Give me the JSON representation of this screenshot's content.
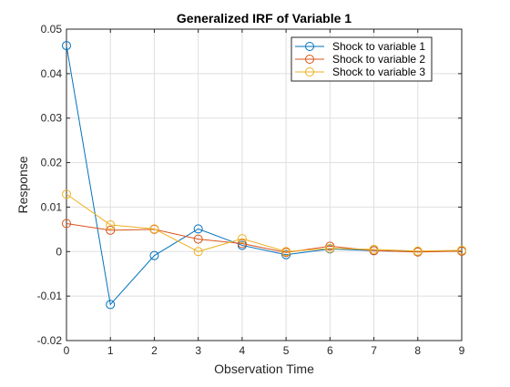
{
  "chart_data": {
    "type": "line",
    "title": "Generalized IRF of Variable 1",
    "xlabel": "Observation Time",
    "ylabel": "Response",
    "xlim": [
      0,
      9
    ],
    "ylim": [
      -0.02,
      0.05
    ],
    "grid": true,
    "legend_position": "top-right",
    "x": [
      0,
      1,
      2,
      3,
      4,
      5,
      6,
      7,
      8,
      9
    ],
    "x_ticks": [
      0,
      1,
      2,
      3,
      4,
      5,
      6,
      7,
      8,
      9
    ],
    "x_tick_labels": [
      "0",
      "1",
      "2",
      "3",
      "4",
      "5",
      "6",
      "7",
      "8",
      "9"
    ],
    "y_ticks": [
      -0.02,
      -0.01,
      0,
      0.01,
      0.02,
      0.03,
      0.04,
      0.05
    ],
    "y_tick_labels": [
      "-0.02",
      "-0.01",
      "0",
      "0.01",
      "0.02",
      "0.03",
      "0.04",
      "0.05"
    ],
    "series": [
      {
        "name": "Shock to variable 1",
        "color": "#0072BD",
        "marker": "circle",
        "values": [
          0.0463,
          -0.0119,
          -0.0009,
          0.0051,
          0.0014,
          -0.0007,
          0.0006,
          0.0002,
          0.0,
          0.0001
        ]
      },
      {
        "name": "Shock to variable 2",
        "color": "#D95319",
        "marker": "circle",
        "values": [
          0.0063,
          0.0048,
          0.005,
          0.0028,
          0.0018,
          -0.0002,
          0.0012,
          0.0002,
          -0.0001,
          0.0001
        ]
      },
      {
        "name": "Shock to variable 3",
        "color": "#EDB120",
        "marker": "circle",
        "values": [
          0.0129,
          0.006,
          0.0051,
          0.0,
          0.0029,
          0.0,
          0.0007,
          0.0005,
          0.0001,
          0.0003
        ]
      }
    ]
  }
}
